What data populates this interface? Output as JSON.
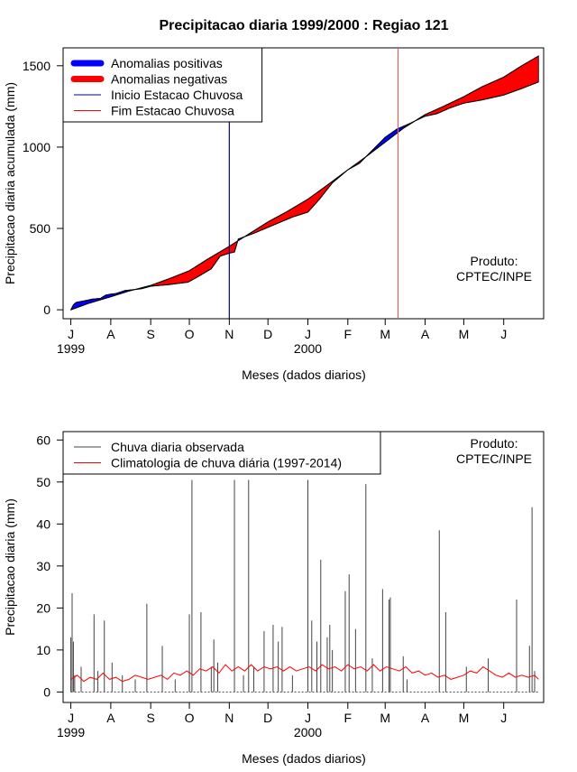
{
  "page_title": "Precipitacao diaria 1999/2000 : Regiao 121",
  "chart_data": [
    {
      "type": "area",
      "xlabel": "Meses (dados diarios)",
      "ylabel": "Precipitacao diaria acumulada (mm)",
      "x_range": [
        "1999-06-25",
        "2000-07-02"
      ],
      "ylim": [
        -55,
        1610
      ],
      "y_ticks": [
        0,
        500,
        1000,
        1500
      ],
      "month_ticks": [
        {
          "date": "1999-07-01",
          "label": "J"
        },
        {
          "date": "1999-08-01",
          "label": "A"
        },
        {
          "date": "1999-09-01",
          "label": "S"
        },
        {
          "date": "1999-10-01",
          "label": "O"
        },
        {
          "date": "1999-11-01",
          "label": "N"
        },
        {
          "date": "1999-12-01",
          "label": "D"
        },
        {
          "date": "2000-01-01",
          "label": "J"
        },
        {
          "date": "2000-02-01",
          "label": "F"
        },
        {
          "date": "2000-03-01",
          "label": "M"
        },
        {
          "date": "2000-04-01",
          "label": "A"
        },
        {
          "date": "2000-05-01",
          "label": "M"
        },
        {
          "date": "2000-06-01",
          "label": "J"
        }
      ],
      "year_labels": [
        {
          "date": "1999-07-01",
          "label": "1999"
        },
        {
          "date": "2000-01-01",
          "label": "2000"
        }
      ],
      "legend_position": "top-left",
      "legend": [
        {
          "label": "Anomalias positivas",
          "color": "#0000ff",
          "kind": "thick"
        },
        {
          "label": "Anomalias negativas",
          "color": "#ff0000",
          "kind": "thick"
        },
        {
          "label": "Inicio Estacao Chuvosa",
          "color": "#00008b",
          "kind": "line"
        },
        {
          "label": "Fim Estacao Chuvosa",
          "color": "#ff0000",
          "kind": "line"
        }
      ],
      "vertical_markers": [
        {
          "date": "1999-11-01",
          "color": "#00008b"
        },
        {
          "date": "2000-03-11",
          "color": "#e06060"
        }
      ],
      "annotation": [
        "Produto:",
        "CPTEC/INPE"
      ],
      "series": [
        {
          "role": "observed",
          "points": [
            [
              "1999-07-01",
              0
            ],
            [
              "1999-07-03",
              30
            ],
            [
              "1999-07-05",
              45
            ],
            [
              "1999-07-08",
              50
            ],
            [
              "1999-07-12",
              56
            ],
            [
              "1999-07-18",
              66
            ],
            [
              "1999-07-24",
              70
            ],
            [
              "1999-07-28",
              90
            ],
            [
              "1999-08-01",
              96
            ],
            [
              "1999-08-05",
              100
            ],
            [
              "1999-08-12",
              118
            ],
            [
              "1999-08-20",
              125
            ],
            [
              "1999-08-25",
              130
            ],
            [
              "1999-09-01",
              145
            ],
            [
              "1999-09-15",
              155
            ],
            [
              "1999-09-30",
              170
            ],
            [
              "1999-10-08",
              205
            ],
            [
              "1999-10-18",
              252
            ],
            [
              "1999-10-25",
              330
            ],
            [
              "1999-11-01",
              348
            ],
            [
              "1999-11-05",
              355
            ],
            [
              "1999-11-08",
              435
            ],
            [
              "1999-11-20",
              470
            ],
            [
              "1999-12-05",
              520
            ],
            [
              "1999-12-20",
              570
            ],
            [
              "2000-01-01",
              600
            ],
            [
              "2000-01-10",
              680
            ],
            [
              "2000-01-20",
              780
            ],
            [
              "2000-02-01",
              860
            ],
            [
              "2000-02-10",
              900
            ],
            [
              "2000-02-20",
              980
            ],
            [
              "2000-03-01",
              1060
            ],
            [
              "2000-03-10",
              1110
            ],
            [
              "2000-03-20",
              1145
            ],
            [
              "2000-04-01",
              1190
            ],
            [
              "2000-04-10",
              1205
            ],
            [
              "2000-04-20",
              1240
            ],
            [
              "2000-05-01",
              1270
            ],
            [
              "2000-05-15",
              1290
            ],
            [
              "2000-06-01",
              1320
            ],
            [
              "2000-06-15",
              1360
            ],
            [
              "2000-06-28",
              1400
            ]
          ]
        },
        {
          "role": "climatology",
          "points": [
            [
              "1999-07-01",
              0
            ],
            [
              "1999-07-15",
              40
            ],
            [
              "1999-08-01",
              80
            ],
            [
              "1999-08-15",
              115
            ],
            [
              "1999-09-01",
              150
            ],
            [
              "1999-09-15",
              190
            ],
            [
              "1999-10-01",
              240
            ],
            [
              "1999-10-15",
              310
            ],
            [
              "1999-11-01",
              390
            ],
            [
              "1999-11-15",
              460
            ],
            [
              "1999-12-01",
              540
            ],
            [
              "1999-12-15",
              600
            ],
            [
              "2000-01-01",
              680
            ],
            [
              "2000-01-15",
              760
            ],
            [
              "2000-02-01",
              860
            ],
            [
              "2000-02-15",
              940
            ],
            [
              "2000-03-01",
              1030
            ],
            [
              "2000-03-15",
              1115
            ],
            [
              "2000-04-01",
              1200
            ],
            [
              "2000-04-15",
              1250
            ],
            [
              "2000-05-01",
              1310
            ],
            [
              "2000-05-15",
              1370
            ],
            [
              "2000-06-01",
              1430
            ],
            [
              "2000-06-15",
              1500
            ],
            [
              "2000-06-28",
              1560
            ]
          ]
        }
      ]
    },
    {
      "type": "line",
      "xlabel": "Meses (dados diarios)",
      "ylabel": "Precipitacao diaria (mm)",
      "x_range": [
        "1999-06-25",
        "2000-07-02"
      ],
      "ylim": [
        -2.5,
        62
      ],
      "y_ticks": [
        0,
        10,
        20,
        30,
        40,
        50,
        60
      ],
      "month_ticks": [
        {
          "date": "1999-07-01",
          "label": "J"
        },
        {
          "date": "1999-08-01",
          "label": "A"
        },
        {
          "date": "1999-09-01",
          "label": "S"
        },
        {
          "date": "1999-10-01",
          "label": "O"
        },
        {
          "date": "1999-11-01",
          "label": "N"
        },
        {
          "date": "1999-12-01",
          "label": "D"
        },
        {
          "date": "2000-01-01",
          "label": "J"
        },
        {
          "date": "2000-02-01",
          "label": "F"
        },
        {
          "date": "2000-03-01",
          "label": "M"
        },
        {
          "date": "2000-04-01",
          "label": "A"
        },
        {
          "date": "2000-05-01",
          "label": "M"
        },
        {
          "date": "2000-06-01",
          "label": "J"
        }
      ],
      "year_labels": [
        {
          "date": "1999-07-01",
          "label": "1999"
        },
        {
          "date": "2000-01-01",
          "label": "2000"
        }
      ],
      "legend_position": "top-left",
      "legend": [
        {
          "label": "Chuva diaria observada",
          "color": "#444444",
          "kind": "line"
        },
        {
          "label": "Climatologia de chuva diária (1997-2014)",
          "color": "#ff0000",
          "kind": "line"
        }
      ],
      "annotation": [
        "Produto:",
        "CPTEC/INPE"
      ],
      "series": [
        {
          "role": "observed_daily",
          "color": "#444444",
          "points": [
            [
              "1999-07-01",
              13
            ],
            [
              "1999-07-02",
              23.5
            ],
            [
              "1999-07-03",
              12
            ],
            [
              "1999-07-04",
              4
            ],
            [
              "1999-07-09",
              6
            ],
            [
              "1999-07-19",
              18.5
            ],
            [
              "1999-07-22",
              5
            ],
            [
              "1999-07-27",
              17
            ],
            [
              "1999-08-02",
              7
            ],
            [
              "1999-08-10",
              4
            ],
            [
              "1999-08-20",
              3
            ],
            [
              "1999-08-29",
              21
            ],
            [
              "1999-09-10",
              11
            ],
            [
              "1999-09-20",
              3
            ],
            [
              "1999-10-01",
              5
            ],
            [
              "1999-10-01",
              18.5
            ],
            [
              "1999-10-03",
              50.5
            ],
            [
              "1999-10-10",
              19
            ],
            [
              "1999-10-18",
              6
            ],
            [
              "1999-10-20",
              12.5
            ],
            [
              "1999-10-23",
              7
            ],
            [
              "1999-11-05",
              50.5
            ],
            [
              "1999-11-12",
              4
            ],
            [
              "1999-11-16",
              50.5
            ],
            [
              "1999-11-20",
              6
            ],
            [
              "1999-11-28",
              14.5
            ],
            [
              "1999-12-05",
              16
            ],
            [
              "1999-12-09",
              12
            ],
            [
              "1999-12-12",
              15.5
            ],
            [
              "1999-12-20",
              4
            ],
            [
              "2000-01-01",
              50.5
            ],
            [
              "2000-01-04",
              17
            ],
            [
              "2000-01-08",
              12
            ],
            [
              "2000-01-11",
              31.5
            ],
            [
              "2000-01-16",
              13
            ],
            [
              "2000-01-18",
              16
            ],
            [
              "2000-01-20",
              10
            ],
            [
              "2000-01-30",
              24
            ],
            [
              "2000-02-02",
              28
            ],
            [
              "2000-02-07",
              15
            ],
            [
              "2000-02-15",
              49.5
            ],
            [
              "2000-02-20",
              8
            ],
            [
              "2000-02-28",
              24.5
            ],
            [
              "2000-03-04",
              22
            ],
            [
              "2000-03-05",
              22.5
            ],
            [
              "2000-03-15",
              8.5
            ],
            [
              "2000-03-18",
              3
            ],
            [
              "2000-04-12",
              38.5
            ],
            [
              "2000-04-17",
              19
            ],
            [
              "2000-05-03",
              6
            ],
            [
              "2000-05-20",
              8
            ],
            [
              "2000-06-11",
              22
            ],
            [
              "2000-06-21",
              11
            ],
            [
              "2000-06-23",
              44
            ],
            [
              "2000-06-25",
              5
            ]
          ]
        },
        {
          "role": "climatology_daily",
          "color": "#ff0000",
          "points": [
            [
              "1999-07-01",
              3
            ],
            [
              "1999-07-06",
              4
            ],
            [
              "1999-07-11",
              2.5
            ],
            [
              "1999-07-16",
              3.5
            ],
            [
              "1999-07-21",
              3
            ],
            [
              "1999-07-26",
              4.5
            ],
            [
              "1999-07-31",
              3
            ],
            [
              "1999-08-05",
              3.5
            ],
            [
              "1999-08-10",
              2.5
            ],
            [
              "1999-08-15",
              3
            ],
            [
              "1999-08-20",
              4
            ],
            [
              "1999-08-25",
              3.5
            ],
            [
              "1999-08-30",
              3
            ],
            [
              "1999-09-04",
              3.5
            ],
            [
              "1999-09-09",
              4
            ],
            [
              "1999-09-14",
              3
            ],
            [
              "1999-09-19",
              4.5
            ],
            [
              "1999-09-24",
              4
            ],
            [
              "1999-09-29",
              5
            ],
            [
              "1999-10-04",
              4
            ],
            [
              "1999-10-09",
              5.5
            ],
            [
              "1999-10-14",
              5
            ],
            [
              "1999-10-19",
              6
            ],
            [
              "1999-10-24",
              4.5
            ],
            [
              "1999-10-29",
              6.5
            ],
            [
              "1999-11-03",
              5
            ],
            [
              "1999-11-08",
              6
            ],
            [
              "1999-11-13",
              5
            ],
            [
              "1999-11-18",
              6.5
            ],
            [
              "1999-11-23",
              5
            ],
            [
              "1999-11-28",
              6
            ],
            [
              "1999-12-03",
              5.5
            ],
            [
              "1999-12-08",
              6
            ],
            [
              "1999-12-13",
              5
            ],
            [
              "1999-12-18",
              6
            ],
            [
              "1999-12-23",
              5
            ],
            [
              "1999-12-28",
              5.5
            ],
            [
              "2000-01-02",
              6
            ],
            [
              "2000-01-07",
              5
            ],
            [
              "2000-01-12",
              6.5
            ],
            [
              "2000-01-17",
              5.5
            ],
            [
              "2000-01-22",
              6
            ],
            [
              "2000-01-27",
              5
            ],
            [
              "2000-02-01",
              6.5
            ],
            [
              "2000-02-06",
              5.5
            ],
            [
              "2000-02-11",
              6
            ],
            [
              "2000-02-16",
              5
            ],
            [
              "2000-02-21",
              6.5
            ],
            [
              "2000-02-26",
              5
            ],
            [
              "2000-03-02",
              6
            ],
            [
              "2000-03-07",
              5.5
            ],
            [
              "2000-03-12",
              5
            ],
            [
              "2000-03-17",
              6
            ],
            [
              "2000-03-22",
              4.5
            ],
            [
              "2000-03-27",
              5
            ],
            [
              "2000-04-01",
              4
            ],
            [
              "2000-04-06",
              4.5
            ],
            [
              "2000-04-11",
              3.5
            ],
            [
              "2000-04-16",
              4
            ],
            [
              "2000-04-21",
              3
            ],
            [
              "2000-04-26",
              3.5
            ],
            [
              "2000-05-01",
              4
            ],
            [
              "2000-05-06",
              5
            ],
            [
              "2000-05-11",
              4.5
            ],
            [
              "2000-05-16",
              6
            ],
            [
              "2000-05-21",
              5
            ],
            [
              "2000-05-26",
              4
            ],
            [
              "2000-05-31",
              3.5
            ],
            [
              "2000-06-05",
              4.5
            ],
            [
              "2000-06-10",
              3.5
            ],
            [
              "2000-06-15",
              4
            ],
            [
              "2000-06-20",
              3.5
            ],
            [
              "2000-06-25",
              4
            ],
            [
              "2000-06-28",
              3
            ]
          ]
        }
      ]
    }
  ]
}
